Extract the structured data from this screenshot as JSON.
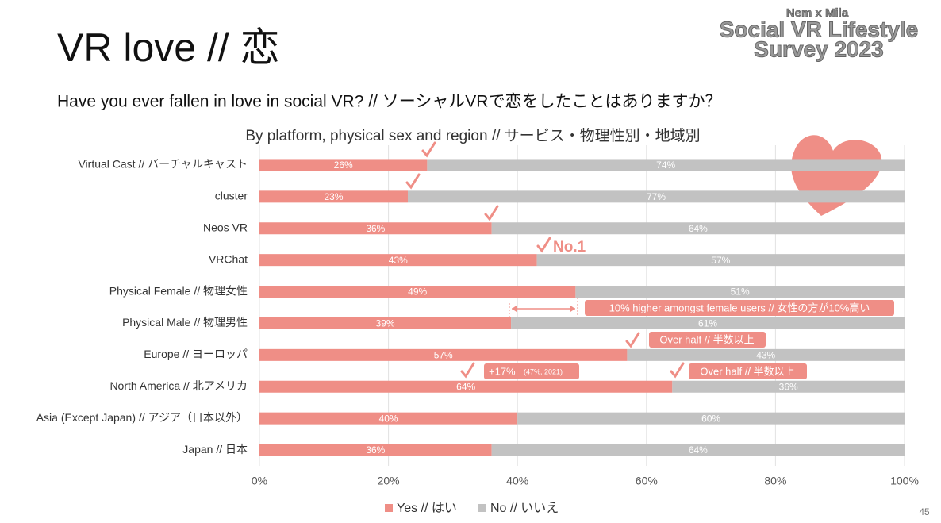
{
  "slide": {
    "title": "VR love // 恋",
    "question": "Have you ever fallen in love in social VR? // ソーシャルVRで恋をしたことはありますか？",
    "logo_top": "Nem x Mila",
    "logo_line1": "Social VR Lifestyle",
    "logo_line2": "Survey 2023",
    "page_number": "45"
  },
  "chart_data": {
    "type": "stacked-bar-horizontal",
    "title": "By platform, physical sex and region // サービス・物理性別・地域別",
    "categories": [
      "Virtual Cast // バーチャルキャスト",
      "cluster",
      "Neos VR",
      "VRChat",
      "Physical Female // 物理女性",
      "Physical Male // 物理男性",
      "Europe // ヨーロッパ",
      "North America // 北アメリカ",
      "Asia (Except Japan) // アジア（日本以外）",
      "Japan // 日本"
    ],
    "series": [
      {
        "name": "Yes // はい",
        "color": "#ef8e86",
        "values": [
          26,
          23,
          36,
          43,
          49,
          39,
          57,
          64,
          40,
          36
        ],
        "value_labels": [
          "26%",
          "23%",
          "36%",
          "43%",
          "49%",
          "39%",
          "57%",
          "64%",
          "40%",
          "36%"
        ]
      },
      {
        "name": "No // いいえ",
        "color": "#c2c2c2",
        "values": [
          74,
          77,
          64,
          57,
          51,
          61,
          43,
          36,
          60,
          64
        ],
        "value_labels": [
          "74%",
          "77%",
          "64%",
          "57%",
          "51%",
          "61%",
          "43%",
          "36%",
          "60%",
          "64%"
        ]
      }
    ],
    "xlim": [
      0,
      100
    ],
    "xticks": [
      {
        "value": 0,
        "label": "0%"
      },
      {
        "value": 20,
        "label": "20%"
      },
      {
        "value": 40,
        "label": "40%"
      },
      {
        "value": 60,
        "label": "60%"
      },
      {
        "value": 80,
        "label": "80%"
      },
      {
        "value": 100,
        "label": "100%"
      }
    ],
    "grid": true,
    "legend": "bottom",
    "annotations": [
      "No.1",
      "10% higher amongst female users // 女性の方が10%高い",
      "Over half // 半数以上",
      "+17%",
      "(47%, 2021)",
      "Over half // 半数以上"
    ]
  }
}
